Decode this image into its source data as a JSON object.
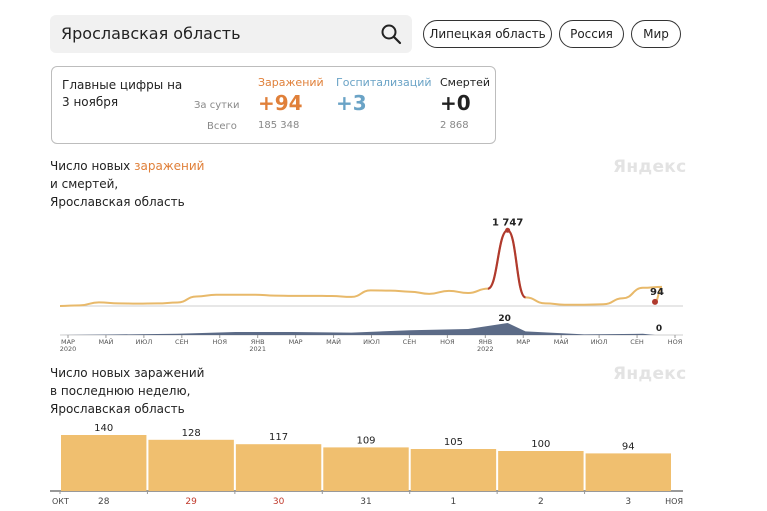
{
  "search": {
    "value": "Ярославская область"
  },
  "region_pills": [
    "Липецкая область",
    "Россия",
    "Мир"
  ],
  "summary": {
    "title_line1": "Главные цифры на",
    "title_line2": "3 ноября",
    "per_day_label": "За сутки",
    "total_label": "Всего",
    "columns": [
      {
        "name": "Заражений",
        "today": "+94",
        "total": "185 348",
        "color": "#e0803a"
      },
      {
        "name": "Госпитализаций",
        "today": "+3",
        "total": "",
        "color": "#6aa3c6"
      },
      {
        "name": "Смертей",
        "today": "+0",
        "total": "2 868",
        "color": "#222222"
      }
    ]
  },
  "chart1_title": {
    "line1_prefix": "Число новых ",
    "line1_accent": "заражений",
    "line2": "и смертей,",
    "line3": "Ярославская область"
  },
  "chart2_title": {
    "line1": "Число новых заражений",
    "line2": "в последнюю неделю,",
    "line3": "Ярославская область"
  },
  "watermark": "Яндекс",
  "colors": {
    "infections": "#e8b96a",
    "peak": "#b03a2e",
    "deaths": "#4a5b7a",
    "bars": "#f0bf6f"
  },
  "chart_data": [
    {
      "type": "line",
      "series": [
        {
          "name": "заражений",
          "x": [
            "2020-03",
            "2020-04",
            "2020-05",
            "2020-06",
            "2020-07",
            "2020-08",
            "2020-09",
            "2020-10",
            "2020-11",
            "2020-12",
            "2021-01",
            "2021-02",
            "2021-03",
            "2021-04",
            "2021-05",
            "2021-06",
            "2021-07",
            "2021-08",
            "2021-09",
            "2021-10",
            "2021-11",
            "2021-12",
            "2022-01",
            "2022-02",
            "2022-03",
            "2022-04",
            "2022-05",
            "2022-06",
            "2022-07",
            "2022-08",
            "2022-09",
            "2022-10",
            "2022-11"
          ],
          "values": [
            0,
            15,
            85,
            60,
            55,
            60,
            80,
            220,
            260,
            260,
            260,
            240,
            235,
            235,
            230,
            210,
            360,
            355,
            330,
            280,
            350,
            300,
            400,
            1747,
            200,
            60,
            30,
            30,
            40,
            180,
            420,
            440,
            94
          ]
        },
        {
          "name": "смертей",
          "x": [
            "2020-03",
            "2020-06",
            "2020-09",
            "2020-12",
            "2021-03",
            "2021-06",
            "2021-09",
            "2021-12",
            "2022-01",
            "2022-02",
            "2022-03",
            "2022-06",
            "2022-09",
            "2022-11"
          ],
          "values": [
            0,
            1,
            2,
            5,
            5,
            4,
            8,
            10,
            15,
            20,
            6,
            1,
            2,
            0
          ]
        }
      ],
      "annotations": [
        {
          "label": "1 747"
        },
        {
          "label": "94"
        },
        {
          "label": "20"
        },
        {
          "label": "0"
        }
      ],
      "xticks": [
        {
          "label": "МАР",
          "sub": "2020"
        },
        {
          "label": "МАЙ",
          "sub": ""
        },
        {
          "label": "ИЮЛ",
          "sub": ""
        },
        {
          "label": "СЕН",
          "sub": ""
        },
        {
          "label": "НОЯ",
          "sub": ""
        },
        {
          "label": "ЯНВ",
          "sub": "2021"
        },
        {
          "label": "МАР",
          "sub": ""
        },
        {
          "label": "МАЙ",
          "sub": ""
        },
        {
          "label": "ИЮЛ",
          "sub": ""
        },
        {
          "label": "СЕН",
          "sub": ""
        },
        {
          "label": "НОЯ",
          "sub": ""
        },
        {
          "label": "ЯНВ",
          "sub": "2022"
        },
        {
          "label": "МАР",
          "sub": ""
        },
        {
          "label": "МАЙ",
          "sub": ""
        },
        {
          "label": "ИЮЛ",
          "sub": ""
        },
        {
          "label": "СЕН",
          "sub": ""
        },
        {
          "label": "НОЯ",
          "sub": ""
        }
      ]
    },
    {
      "type": "bar",
      "categories": [
        "28",
        "29",
        "30",
        "31",
        "1",
        "2",
        "3"
      ],
      "values": [
        140,
        128,
        117,
        109,
        105,
        100,
        94
      ],
      "start_label": "ОКТ",
      "end_label": "НОЯ",
      "weekend_categories": [
        "29",
        "30"
      ],
      "ylim": [
        0,
        160
      ]
    }
  ]
}
